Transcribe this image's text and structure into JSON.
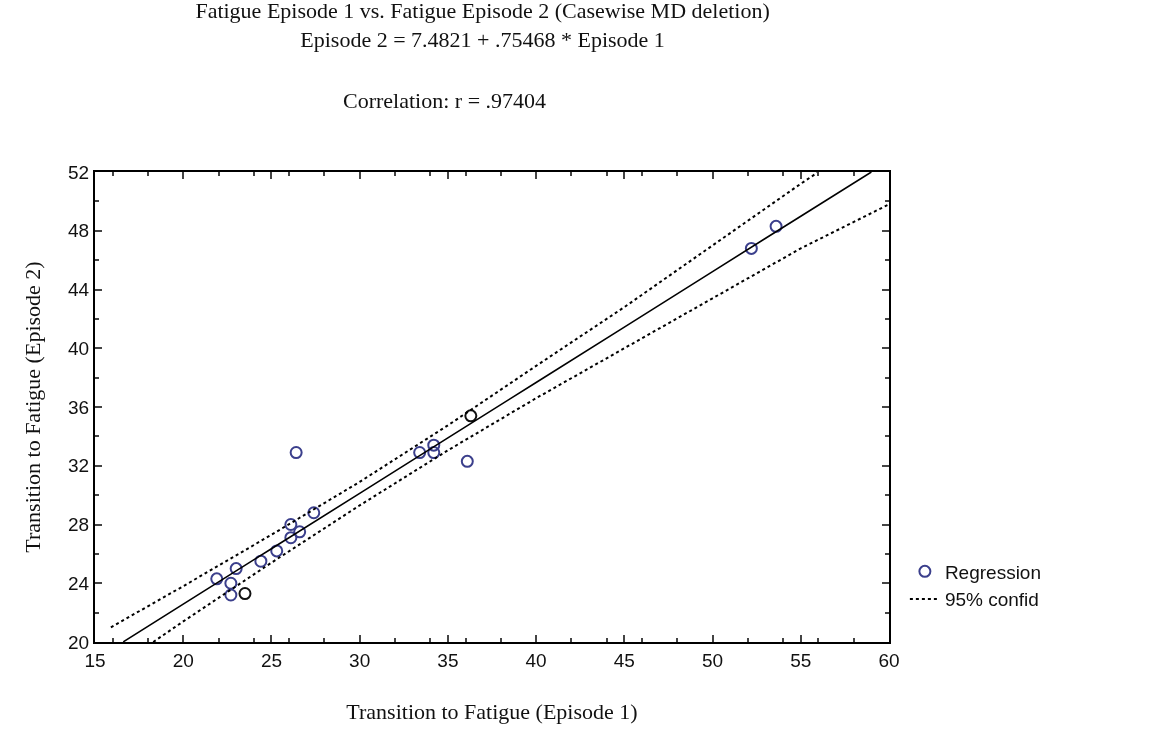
{
  "chart_data": {
    "type": "scatter",
    "title": "Fatigue Episode 1 vs. Fatigue Episode 2 (Casewise MD deletion)",
    "subtitle": "Episode 2 = 7.4821 + .75468 * Episode 1",
    "annotations": [
      "Correlation: r = .97404"
    ],
    "xlabel": "Transition to Fatigue (Episode 1)",
    "ylabel": "Transition to Fatigue (Episode 2)",
    "xlim": [
      15,
      60
    ],
    "xticks": [
      15,
      20,
      25,
      30,
      35,
      40,
      45,
      50,
      55,
      60
    ],
    "ylim": [
      20,
      52
    ],
    "yticks": [
      20,
      24,
      28,
      32,
      36,
      40,
      44,
      48,
      52
    ],
    "grid": false,
    "legend": "right",
    "series": [
      {
        "name": "Regression",
        "marker": "circle",
        "x": [
          21.9,
          23.0,
          22.7,
          22.7,
          23.5,
          24.4,
          25.3,
          26.1,
          26.1,
          26.6,
          27.4,
          26.4,
          33.4,
          34.2,
          34.2,
          36.3,
          36.1,
          52.2,
          53.6
        ],
        "values": [
          24.3,
          25.0,
          24.0,
          23.2,
          23.3,
          25.5,
          26.2,
          27.1,
          28.0,
          27.5,
          28.8,
          32.9,
          32.9,
          32.9,
          33.4,
          35.4,
          32.3,
          46.8,
          48.3
        ],
        "colors": [
          "#3b3f8c",
          "#3b3f8c",
          "#3b3f8c",
          "#3b3f8c",
          "#111111",
          "#3b3f8c",
          "#3b3f8c",
          "#3b3f8c",
          "#3b3f8c",
          "#3b3f8c",
          "#3b3f8c",
          "#3b3f8c",
          "#3b3f8c",
          "#3b3f8c",
          "#3b3f8c",
          "#111111",
          "#3b3f8c",
          "#3b3f8c",
          "#3b3f8c"
        ]
      },
      {
        "type": "line",
        "color": "#000000",
        "line_style": "solid",
        "x": [
          16.6,
          20,
          25,
          30,
          35,
          40,
          45,
          50,
          55,
          59
        ],
        "values": [
          20.01,
          22.58,
          26.35,
          30.12,
          33.9,
          37.67,
          41.44,
          45.22,
          48.99,
          52.0
        ]
      },
      {
        "name": "95% confid",
        "type": "line",
        "color": "#000000",
        "line_style": "dotted",
        "x": [
          15.9,
          20,
          25,
          30,
          35,
          40,
          45,
          50,
          55,
          56
        ],
        "values": [
          21.0,
          23.8,
          27.3,
          30.9,
          34.75,
          38.8,
          42.8,
          47.0,
          51.2,
          52.0
        ]
      },
      {
        "type": "line",
        "color": "#000000",
        "line_style": "dotted",
        "x": [
          18.3,
          20,
          25,
          30,
          35,
          40,
          45,
          50,
          55,
          60
        ],
        "values": [
          20.0,
          21.4,
          25.4,
          29.3,
          33.05,
          36.6,
          40.0,
          43.4,
          46.8,
          49.8
        ]
      }
    ]
  }
}
